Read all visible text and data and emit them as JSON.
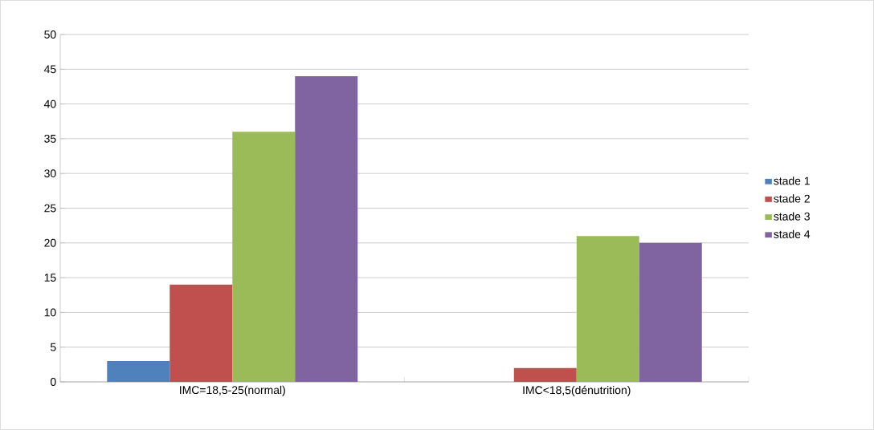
{
  "chart_data": {
    "type": "bar",
    "categories": [
      "IMC=18,5-25(normal)",
      "IMC<18,5(dénutrition)"
    ],
    "series": [
      {
        "name": "stade 1",
        "color": "#4f81bd",
        "values": [
          3,
          0
        ]
      },
      {
        "name": "stade 2",
        "color": "#c0504d",
        "values": [
          14,
          2
        ]
      },
      {
        "name": "stade 3",
        "color": "#9bbb59",
        "values": [
          36,
          21
        ]
      },
      {
        "name": "stade 4",
        "color": "#8064a2",
        "values": [
          44,
          20
        ]
      }
    ],
    "ylim": [
      0,
      50
    ],
    "yticks": [
      0,
      5,
      10,
      15,
      20,
      25,
      30,
      35,
      40,
      45,
      50
    ],
    "grid": "y",
    "legend": "right"
  }
}
